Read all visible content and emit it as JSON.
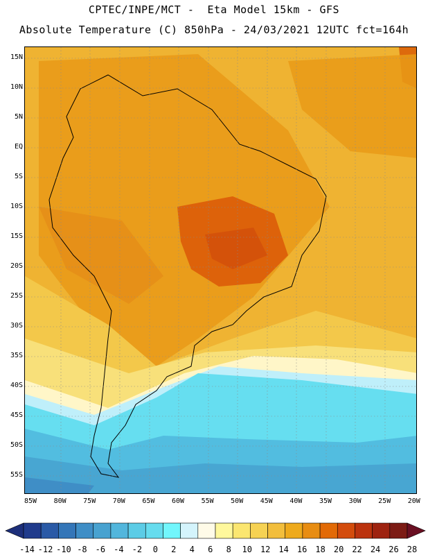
{
  "header": {
    "line1": "CPTEC/INPE/MCT -  Eta Model 15km - GFS",
    "line2": "Absolute Temperature (C) 850hPa - 24/03/2021 12UTC fct=164h"
  },
  "map": {
    "latitude_labels": [
      "15N",
      "10N",
      "5N",
      "EQ",
      "5S",
      "10S",
      "15S",
      "20S",
      "25S",
      "30S",
      "35S",
      "40S",
      "45S",
      "50S",
      "55S"
    ],
    "longitude_labels": [
      "85W",
      "80W",
      "75W",
      "70W",
      "65W",
      "60W",
      "55W",
      "50W",
      "45W",
      "40W",
      "35W",
      "30W",
      "25W",
      "20W"
    ],
    "latitude_values": [
      15,
      10,
      5,
      0,
      -5,
      -10,
      -15,
      -20,
      -25,
      -30,
      -35,
      -40,
      -45,
      -50,
      -55
    ],
    "longitude_values": [
      -85,
      -80,
      -75,
      -70,
      -65,
      -60,
      -55,
      -50,
      -45,
      -40,
      -35,
      -30,
      -25,
      -20
    ]
  },
  "colorbar": {
    "labels": [
      "-14",
      "-12",
      "-10",
      "-8",
      "-6",
      "-4",
      "-2",
      "0",
      "2",
      "4",
      "6",
      "8",
      "10",
      "12",
      "14",
      "16",
      "18",
      "20",
      "22",
      "24",
      "26",
      "28"
    ],
    "colors": [
      "#203b8c",
      "#2a5aa6",
      "#3476b8",
      "#3f8ec6",
      "#48a2d0",
      "#52b6dc",
      "#5ccce6",
      "#66dcee",
      "#72f6fc",
      "#d4f4fc",
      "#fffbe8",
      "#fff89c",
      "#fbe670",
      "#f6d253",
      "#f2be3c",
      "#eeaa1c",
      "#e88d12",
      "#e26a06",
      "#d34c0c",
      "#bb330e",
      "#9e2310",
      "#7c1b14"
    ],
    "arrow_left_color": "#1d2f7a",
    "arrow_right_color": "#6a0f22"
  }
}
